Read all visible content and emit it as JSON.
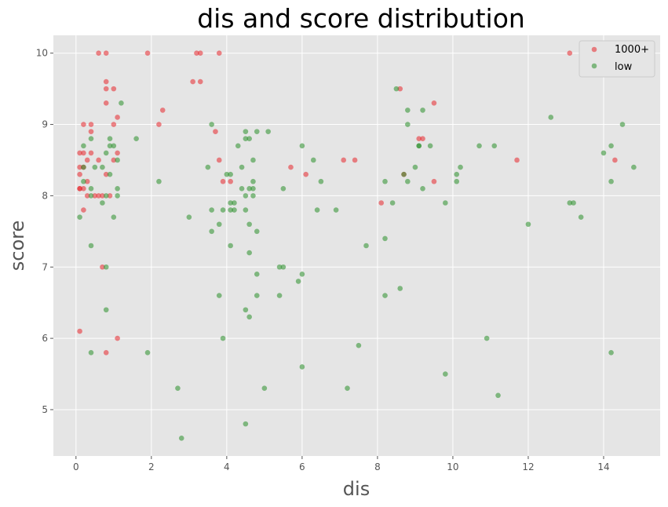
{
  "chart_data": {
    "type": "scatter",
    "title": "dis and score distribution",
    "xlabel": "dis",
    "ylabel": "score",
    "xlim": [
      -0.6,
      15.5
    ],
    "ylim": [
      4.35,
      10.25
    ],
    "xticks": [
      0,
      2,
      4,
      6,
      8,
      10,
      12,
      14
    ],
    "yticks": [
      5,
      6,
      7,
      8,
      9,
      10
    ],
    "grid": true,
    "legend_position": "top-right",
    "background": "#e5e5e5",
    "series": [
      {
        "name": "1000+",
        "color": "#e8262b",
        "points": [
          [
            0.1,
            8.6
          ],
          [
            0.1,
            8.4
          ],
          [
            0.1,
            8.3
          ],
          [
            0.1,
            8.1
          ],
          [
            0.1,
            8.1
          ],
          [
            0.2,
            8.6
          ],
          [
            0.2,
            8.4
          ],
          [
            0.2,
            8.1
          ],
          [
            0.2,
            7.8
          ],
          [
            0.2,
            9.0
          ],
          [
            0.3,
            8.5
          ],
          [
            0.3,
            8.2
          ],
          [
            0.3,
            8.0
          ],
          [
            0.4,
            9.0
          ],
          [
            0.4,
            8.9
          ],
          [
            0.4,
            8.6
          ],
          [
            0.5,
            8.0
          ],
          [
            0.6,
            8.5
          ],
          [
            0.6,
            8.0
          ],
          [
            0.6,
            10.0
          ],
          [
            0.7,
            7.0
          ],
          [
            0.7,
            8.0
          ],
          [
            0.8,
            9.6
          ],
          [
            0.8,
            9.5
          ],
          [
            0.8,
            9.3
          ],
          [
            0.8,
            8.3
          ],
          [
            0.8,
            10.0
          ],
          [
            0.8,
            5.8
          ],
          [
            0.9,
            8.0
          ],
          [
            1.0,
            9.5
          ],
          [
            1.0,
            9.0
          ],
          [
            1.0,
            8.5
          ],
          [
            1.1,
            9.1
          ],
          [
            1.1,
            8.6
          ],
          [
            1.1,
            6.0
          ],
          [
            0.1,
            6.1
          ],
          [
            1.9,
            10.0
          ],
          [
            2.2,
            9.0
          ],
          [
            2.3,
            9.2
          ],
          [
            3.1,
            9.6
          ],
          [
            3.2,
            10.0
          ],
          [
            3.3,
            10.0
          ],
          [
            3.3,
            9.6
          ],
          [
            3.7,
            8.9
          ],
          [
            3.8,
            8.5
          ],
          [
            3.8,
            10.0
          ],
          [
            3.9,
            8.2
          ],
          [
            4.1,
            8.2
          ],
          [
            5.7,
            8.4
          ],
          [
            6.1,
            8.3
          ],
          [
            7.1,
            8.5
          ],
          [
            7.4,
            8.5
          ],
          [
            8.1,
            7.9
          ],
          [
            8.6,
            9.5
          ],
          [
            8.7,
            8.3
          ],
          [
            9.1,
            8.8
          ],
          [
            9.2,
            8.8
          ],
          [
            9.5,
            9.3
          ],
          [
            9.5,
            8.2
          ],
          [
            11.7,
            8.5
          ],
          [
            13.1,
            10.0
          ],
          [
            14.3,
            8.5
          ]
        ]
      },
      {
        "name": "low",
        "color": "#2a8f2a",
        "points": [
          [
            0.1,
            7.7
          ],
          [
            0.2,
            8.7
          ],
          [
            0.2,
            8.4
          ],
          [
            0.2,
            8.2
          ],
          [
            0.4,
            8.8
          ],
          [
            0.4,
            8.1
          ],
          [
            0.4,
            8.0
          ],
          [
            0.4,
            7.3
          ],
          [
            0.4,
            5.8
          ],
          [
            0.5,
            8.4
          ],
          [
            0.7,
            8.4
          ],
          [
            0.7,
            7.9
          ],
          [
            0.8,
            8.6
          ],
          [
            0.8,
            8.0
          ],
          [
            0.8,
            7.0
          ],
          [
            0.8,
            6.4
          ],
          [
            0.9,
            8.8
          ],
          [
            0.9,
            8.7
          ],
          [
            0.9,
            8.3
          ],
          [
            1.0,
            8.7
          ],
          [
            1.0,
            7.7
          ],
          [
            1.1,
            8.5
          ],
          [
            1.1,
            8.1
          ],
          [
            1.1,
            8.0
          ],
          [
            1.2,
            9.3
          ],
          [
            1.6,
            8.8
          ],
          [
            1.9,
            5.8
          ],
          [
            2.2,
            8.2
          ],
          [
            2.7,
            5.3
          ],
          [
            2.8,
            4.6
          ],
          [
            3.0,
            7.7
          ],
          [
            3.5,
            8.4
          ],
          [
            3.6,
            9.0
          ],
          [
            3.6,
            7.8
          ],
          [
            3.6,
            7.5
          ],
          [
            3.8,
            7.6
          ],
          [
            3.8,
            6.6
          ],
          [
            3.9,
            7.8
          ],
          [
            3.9,
            6.0
          ],
          [
            4.0,
            8.3
          ],
          [
            4.1,
            8.3
          ],
          [
            4.1,
            7.9
          ],
          [
            4.1,
            7.8
          ],
          [
            4.1,
            7.3
          ],
          [
            4.2,
            7.9
          ],
          [
            4.2,
            7.8
          ],
          [
            4.3,
            8.7
          ],
          [
            4.4,
            8.4
          ],
          [
            4.4,
            8.1
          ],
          [
            4.5,
            8.9
          ],
          [
            4.5,
            8.8
          ],
          [
            4.5,
            8.0
          ],
          [
            4.5,
            7.8
          ],
          [
            4.5,
            6.4
          ],
          [
            4.5,
            4.8
          ],
          [
            4.6,
            8.8
          ],
          [
            4.6,
            8.1
          ],
          [
            4.6,
            7.6
          ],
          [
            4.6,
            7.2
          ],
          [
            4.6,
            6.3
          ],
          [
            4.7,
            8.5
          ],
          [
            4.7,
            8.2
          ],
          [
            4.7,
            8.1
          ],
          [
            4.7,
            8.0
          ],
          [
            4.8,
            8.9
          ],
          [
            4.8,
            7.5
          ],
          [
            4.8,
            6.9
          ],
          [
            4.8,
            6.6
          ],
          [
            5.0,
            5.3
          ],
          [
            5.1,
            8.9
          ],
          [
            5.4,
            7.0
          ],
          [
            5.4,
            6.6
          ],
          [
            5.5,
            8.1
          ],
          [
            5.5,
            7.0
          ],
          [
            5.9,
            6.8
          ],
          [
            6.0,
            8.7
          ],
          [
            6.0,
            6.9
          ],
          [
            6.0,
            5.6
          ],
          [
            6.3,
            8.5
          ],
          [
            6.4,
            7.8
          ],
          [
            6.5,
            8.2
          ],
          [
            6.9,
            7.8
          ],
          [
            7.2,
            5.3
          ],
          [
            7.5,
            5.9
          ],
          [
            7.7,
            7.3
          ],
          [
            8.2,
            8.2
          ],
          [
            8.2,
            7.4
          ],
          [
            8.2,
            6.6
          ],
          [
            8.4,
            7.9
          ],
          [
            8.5,
            9.5
          ],
          [
            8.6,
            6.7
          ],
          [
            8.7,
            8.3
          ],
          [
            8.8,
            9.2
          ],
          [
            8.8,
            9.0
          ],
          [
            8.8,
            8.2
          ],
          [
            9.0,
            8.4
          ],
          [
            9.1,
            8.7
          ],
          [
            9.1,
            8.7
          ],
          [
            9.2,
            9.2
          ],
          [
            9.2,
            8.1
          ],
          [
            9.4,
            8.7
          ],
          [
            9.8,
            7.9
          ],
          [
            9.8,
            5.5
          ],
          [
            10.1,
            8.3
          ],
          [
            10.1,
            8.2
          ],
          [
            10.2,
            8.4
          ],
          [
            10.7,
            8.7
          ],
          [
            10.9,
            6.0
          ],
          [
            11.1,
            8.7
          ],
          [
            11.2,
            5.2
          ],
          [
            12.0,
            7.6
          ],
          [
            12.6,
            9.1
          ],
          [
            13.1,
            7.9
          ],
          [
            13.2,
            7.9
          ],
          [
            13.4,
            7.7
          ],
          [
            14.0,
            8.6
          ],
          [
            14.2,
            8.7
          ],
          [
            14.2,
            8.2
          ],
          [
            14.2,
            5.8
          ],
          [
            14.5,
            9.0
          ],
          [
            14.8,
            8.4
          ]
        ]
      }
    ]
  }
}
